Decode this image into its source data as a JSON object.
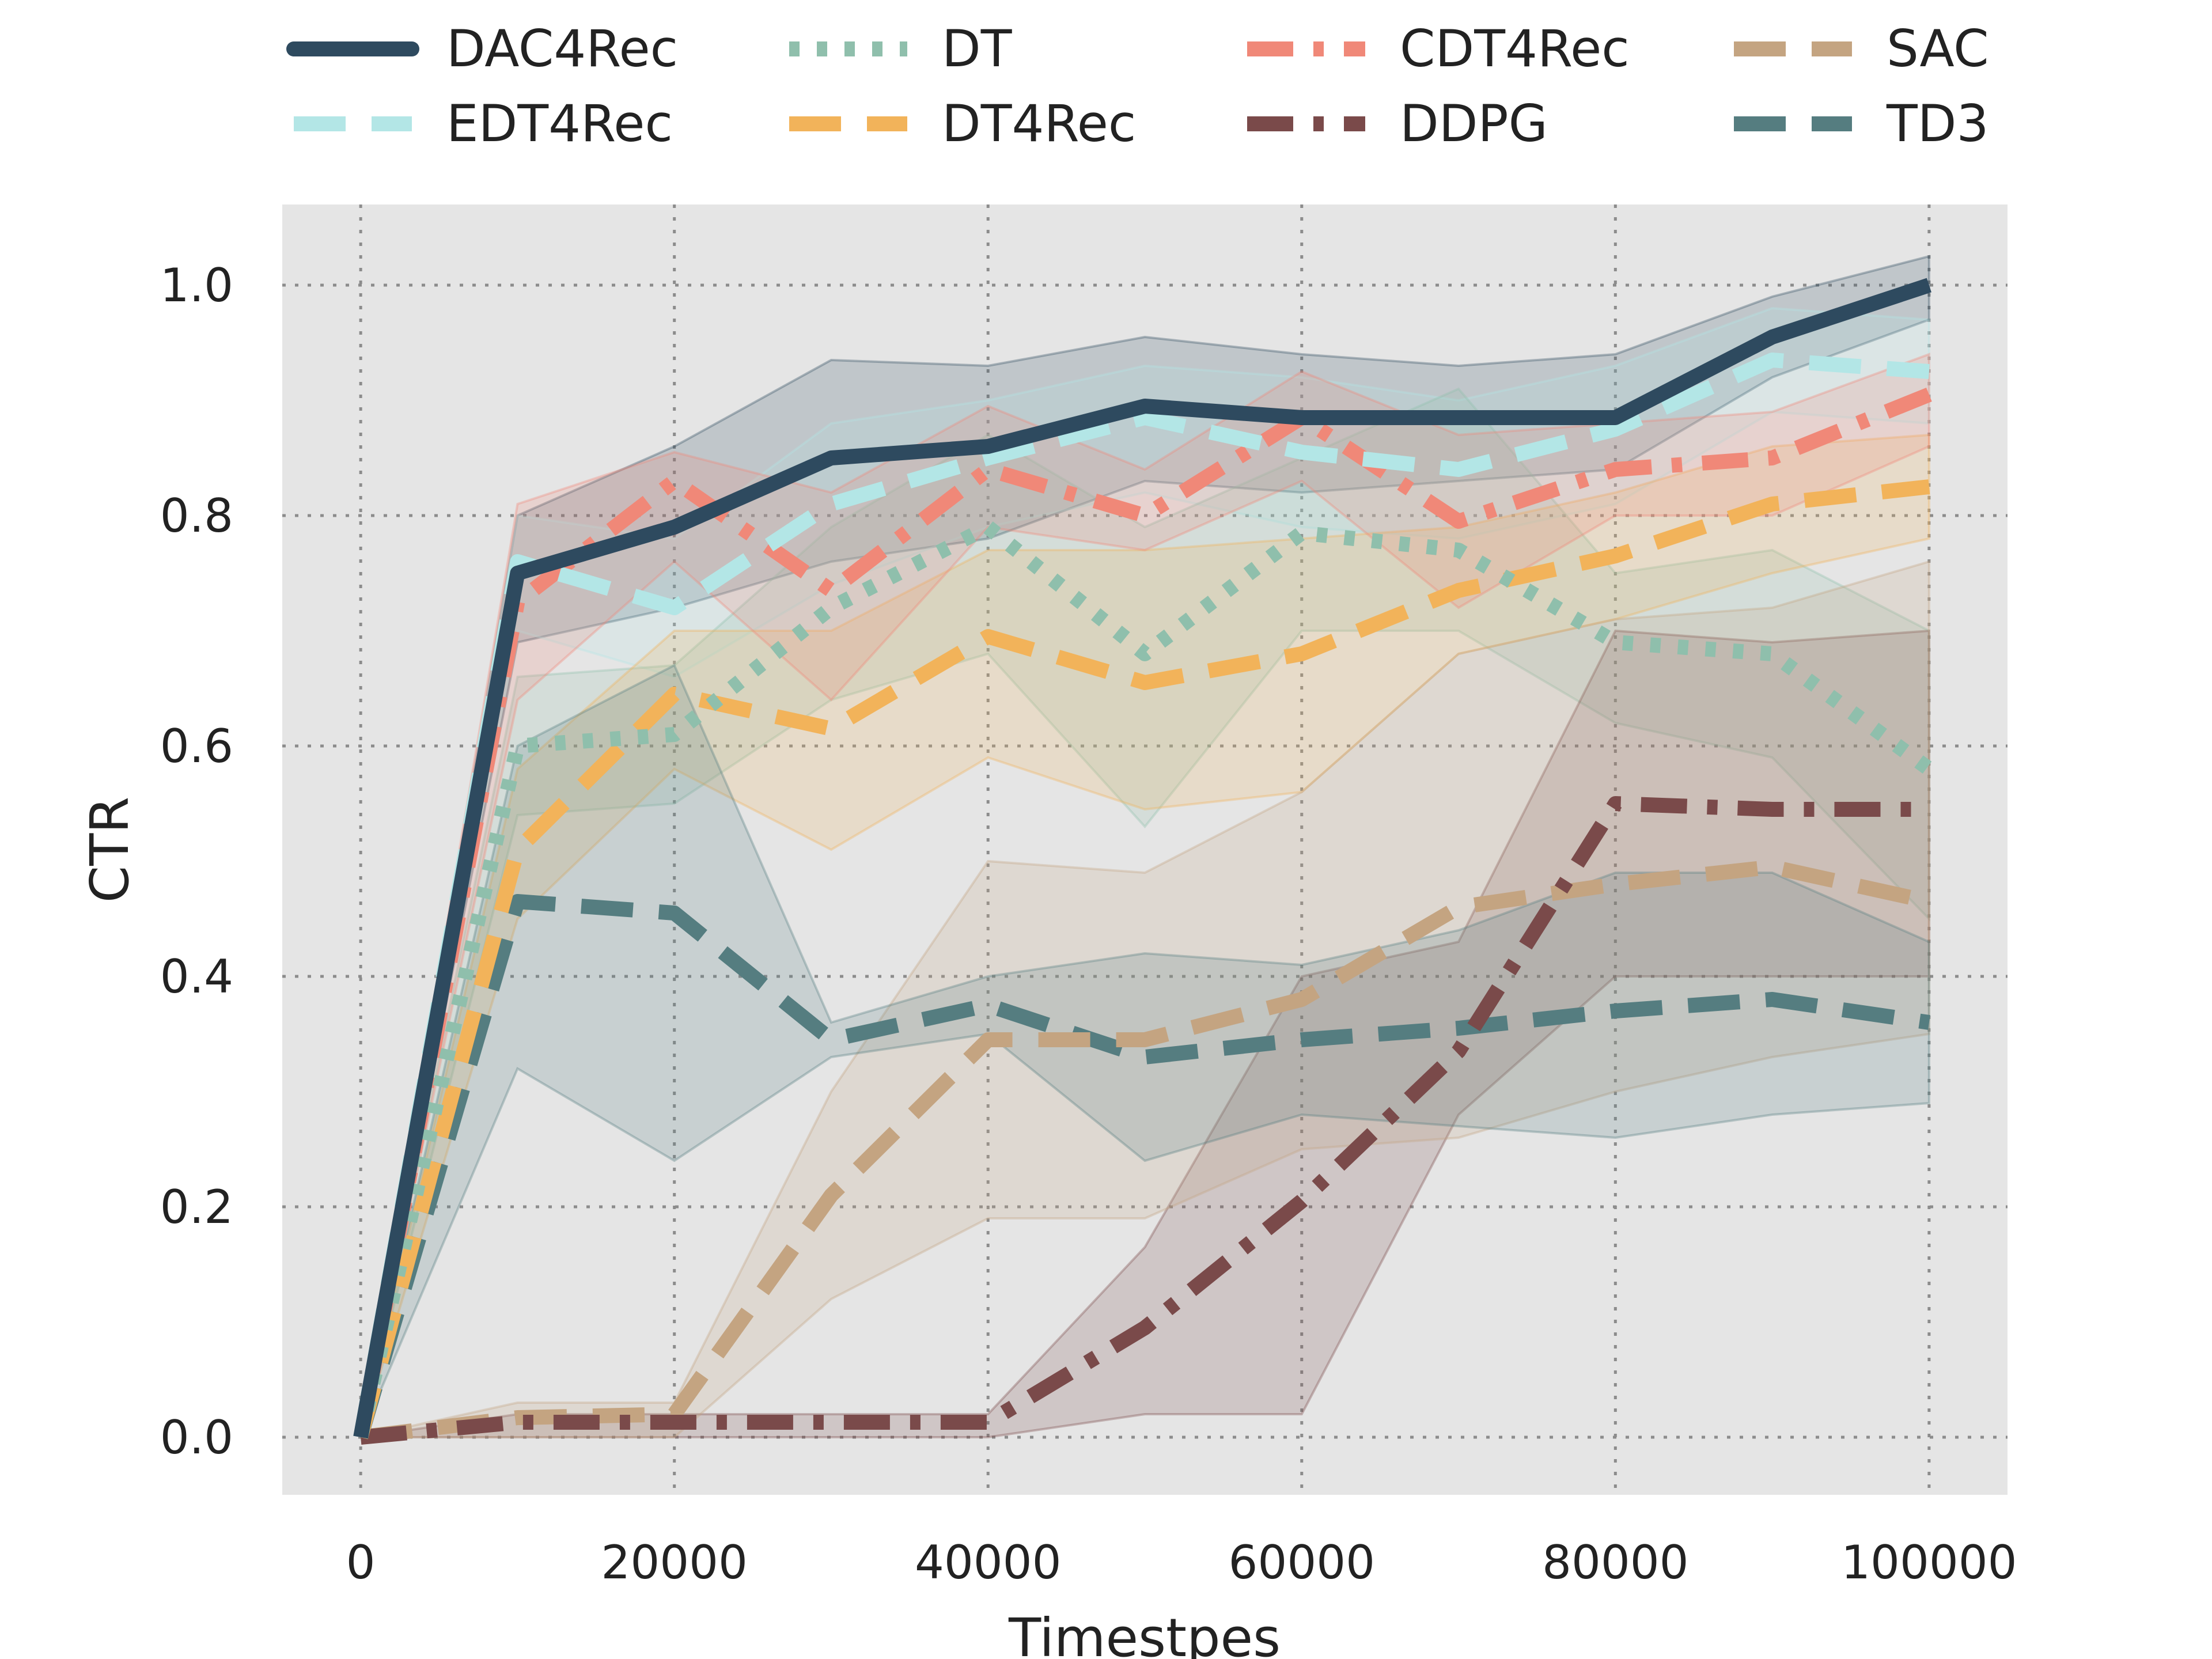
{
  "chart_data": {
    "type": "line",
    "title": "",
    "xlabel": "Timestpes",
    "ylabel": "CTR",
    "xlim": [
      -5000,
      105000
    ],
    "ylim": [
      -0.05,
      1.07
    ],
    "x_ticks": [
      0,
      20000,
      40000,
      60000,
      80000,
      100000
    ],
    "x_tick_labels": [
      "0",
      "20000",
      "40000",
      "60000",
      "80000",
      "100000"
    ],
    "y_ticks": [
      0.0,
      0.2,
      0.4,
      0.6,
      0.8,
      1.0
    ],
    "y_tick_labels": [
      "0.0",
      "0.2",
      "0.4",
      "0.6",
      "0.8",
      "1.0"
    ],
    "grid": true,
    "legend_position": "top, outside plot, 4 columns",
    "x": [
      0,
      10000,
      20000,
      30000,
      40000,
      50000,
      60000,
      70000,
      80000,
      90000,
      100000
    ],
    "series": [
      {
        "name": "DAC4Rec",
        "color": "#2e4a5f",
        "dash": "solid",
        "values": [
          0.0,
          0.75,
          0.79,
          0.85,
          0.86,
          0.895,
          0.885,
          0.885,
          0.885,
          0.955,
          1.0
        ],
        "lower": [
          0.0,
          0.69,
          0.72,
          0.76,
          0.78,
          0.83,
          0.82,
          0.83,
          0.84,
          0.92,
          0.97
        ],
        "upper": [
          0.0,
          0.8,
          0.86,
          0.935,
          0.93,
          0.955,
          0.94,
          0.93,
          0.94,
          0.99,
          1.025
        ]
      },
      {
        "name": "EDT4Rec",
        "color": "#b3e6e6",
        "dash": "dash",
        "values": [
          0.0,
          0.76,
          0.72,
          0.81,
          0.85,
          0.885,
          0.855,
          0.84,
          0.875,
          0.935,
          0.925
        ],
        "lower": [
          0.0,
          0.7,
          0.66,
          0.74,
          0.79,
          0.82,
          0.79,
          0.78,
          0.81,
          0.89,
          0.88
        ],
        "upper": [
          0.0,
          0.8,
          0.78,
          0.88,
          0.9,
          0.93,
          0.92,
          0.9,
          0.93,
          0.98,
          0.97
        ]
      },
      {
        "name": "DT",
        "color": "#8fbfac",
        "dash": "dot",
        "values": [
          0.0,
          0.6,
          0.61,
          0.72,
          0.79,
          0.68,
          0.785,
          0.77,
          0.69,
          0.68,
          0.58
        ],
        "lower": [
          0.0,
          0.54,
          0.55,
          0.64,
          0.68,
          0.53,
          0.7,
          0.7,
          0.62,
          0.59,
          0.45
        ],
        "upper": [
          0.0,
          0.66,
          0.67,
          0.79,
          0.87,
          0.79,
          0.85,
          0.91,
          0.75,
          0.77,
          0.7
        ]
      },
      {
        "name": "DT4Rec",
        "color": "#f2b35a",
        "dash": "dash",
        "values": [
          0.0,
          0.51,
          0.645,
          0.615,
          0.695,
          0.655,
          0.68,
          0.735,
          0.765,
          0.81,
          0.825
        ],
        "lower": [
          0.0,
          0.45,
          0.58,
          0.51,
          0.59,
          0.545,
          0.56,
          0.68,
          0.71,
          0.75,
          0.78
        ],
        "upper": [
          0.0,
          0.58,
          0.7,
          0.7,
          0.77,
          0.77,
          0.78,
          0.79,
          0.82,
          0.86,
          0.87
        ]
      },
      {
        "name": "CDT4Rec",
        "color": "#f08878",
        "dash": "dashdot",
        "values": [
          0.0,
          0.725,
          0.83,
          0.735,
          0.84,
          0.8,
          0.885,
          0.795,
          0.84,
          0.85,
          0.905
        ],
        "lower": [
          0.0,
          0.64,
          0.76,
          0.64,
          0.79,
          0.77,
          0.83,
          0.72,
          0.8,
          0.8,
          0.86
        ],
        "upper": [
          0.0,
          0.81,
          0.855,
          0.82,
          0.895,
          0.84,
          0.925,
          0.87,
          0.88,
          0.89,
          0.94
        ]
      },
      {
        "name": "DDPG",
        "color": "#7a4a4a",
        "dash": "dashdot",
        "values": [
          0.0,
          0.013,
          0.013,
          0.013,
          0.013,
          0.095,
          0.205,
          0.335,
          0.55,
          0.545,
          0.545
        ],
        "lower": [
          0.0,
          0.0,
          0.0,
          0.0,
          0.0,
          0.02,
          0.02,
          0.28,
          0.4,
          0.4,
          0.4
        ],
        "upper": [
          0.0,
          0.02,
          0.02,
          0.02,
          0.02,
          0.165,
          0.4,
          0.43,
          0.7,
          0.69,
          0.7
        ]
      },
      {
        "name": "SAC",
        "color": "#c4a481",
        "dash": "dash",
        "values": [
          0.0,
          0.017,
          0.02,
          0.21,
          0.345,
          0.345,
          0.38,
          0.46,
          0.48,
          0.495,
          0.465
        ],
        "lower": [
          0.0,
          0.0,
          0.0,
          0.12,
          0.19,
          0.19,
          0.25,
          0.26,
          0.3,
          0.33,
          0.35
        ],
        "upper": [
          0.0,
          0.03,
          0.03,
          0.3,
          0.5,
          0.49,
          0.56,
          0.68,
          0.71,
          0.72,
          0.76
        ]
      },
      {
        "name": "TD3",
        "color": "#557d80",
        "dash": "dash",
        "values": [
          0.0,
          0.465,
          0.455,
          0.345,
          0.375,
          0.33,
          0.345,
          0.355,
          0.37,
          0.38,
          0.36
        ],
        "lower": [
          0.0,
          0.32,
          0.24,
          0.33,
          0.35,
          0.24,
          0.28,
          0.27,
          0.26,
          0.28,
          0.29
        ],
        "upper": [
          0.0,
          0.6,
          0.67,
          0.36,
          0.4,
          0.42,
          0.41,
          0.44,
          0.49,
          0.49,
          0.43
        ]
      }
    ]
  }
}
